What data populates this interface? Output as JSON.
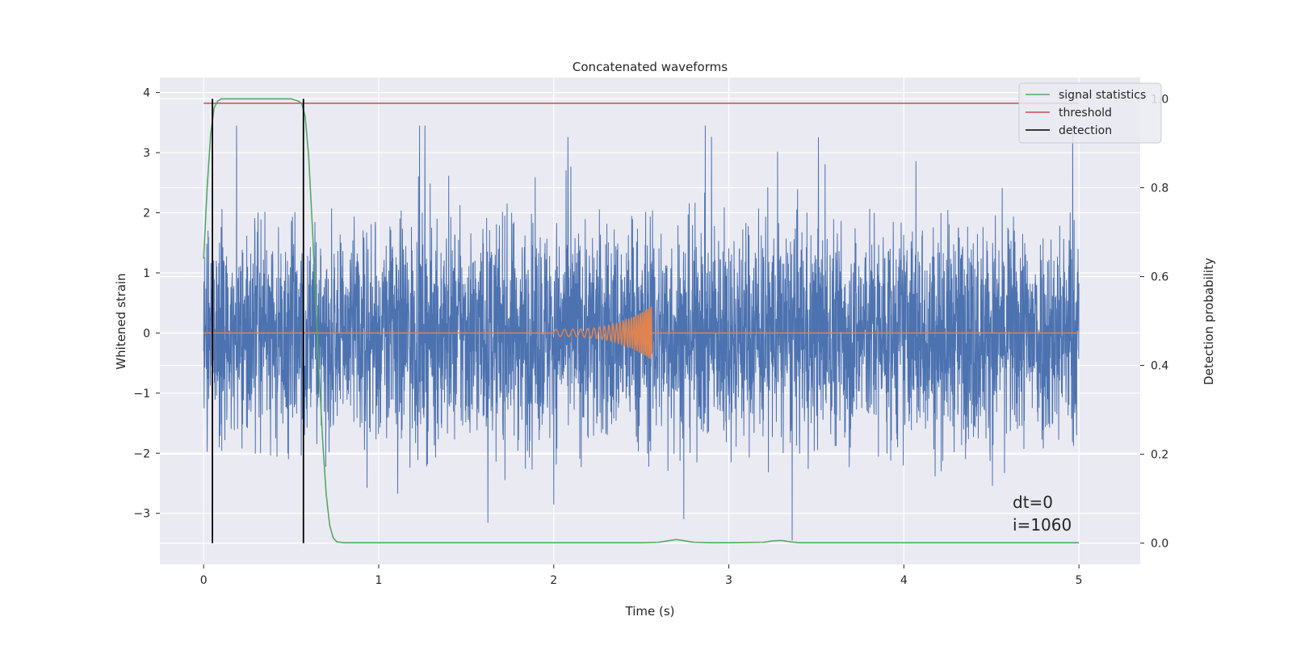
{
  "chart_data": {
    "type": "line",
    "title": "Concatenated waveforms",
    "xlabel": "Time (s)",
    "ylabel": "Whitened strain",
    "y2label": "Detection probability",
    "xlim": [
      -0.25,
      5.35
    ],
    "ylim": [
      -3.85,
      4.25
    ],
    "y2lim": [
      -0.048,
      1.048
    ],
    "xticks": [
      0,
      1,
      2,
      3,
      4,
      5
    ],
    "yticks": [
      -3,
      -2,
      -1,
      0,
      1,
      2,
      3,
      4
    ],
    "y2ticks": [
      0.0,
      0.2,
      0.4,
      0.6,
      0.8,
      1.0
    ],
    "xtick_labels": [
      "0",
      "1",
      "2",
      "3",
      "4",
      "5"
    ],
    "ytick_labels": [
      "−3",
      "−2",
      "−1",
      "0",
      "1",
      "2",
      "3",
      "4"
    ],
    "y2tick_labels": [
      "0.0",
      "0.2",
      "0.4",
      "0.6",
      "0.8",
      "1.0"
    ],
    "grid": true,
    "legend_position": "top-right",
    "series": [
      {
        "name": "whitened strain",
        "axis": "left",
        "color": "#4c72b0",
        "description": "noise, approx. amplitude within [-3.5, 3.5], t from 0 to 5 s"
      },
      {
        "name": "injected signal",
        "axis": "left",
        "color": "#dd8452",
        "chirp_start": 2.0,
        "chirp_end": 2.56,
        "peak_amplitude": 0.45
      },
      {
        "name": "signal statistics",
        "axis": "right",
        "color": "#55a868",
        "x": [
          0.0,
          0.02,
          0.04,
          0.06,
          0.08,
          0.1,
          0.2,
          0.3,
          0.4,
          0.5,
          0.54,
          0.56,
          0.58,
          0.6,
          0.62,
          0.64,
          0.66,
          0.68,
          0.7,
          0.72,
          0.74,
          0.76,
          0.8,
          1.0,
          1.5,
          2.0,
          2.5,
          2.6,
          2.65,
          2.7,
          2.75,
          2.8,
          2.9,
          3.0,
          3.2,
          3.25,
          3.3,
          3.35,
          3.4,
          4.0,
          4.5,
          5.0
        ],
        "y": [
          0.64,
          0.8,
          0.92,
          0.98,
          0.995,
          1.0,
          1.0,
          1.0,
          1.0,
          1.0,
          0.995,
          0.99,
          0.96,
          0.87,
          0.72,
          0.55,
          0.38,
          0.23,
          0.11,
          0.04,
          0.012,
          0.003,
          0.001,
          0.001,
          0.001,
          0.001,
          0.001,
          0.002,
          0.005,
          0.008,
          0.005,
          0.002,
          0.001,
          0.001,
          0.002,
          0.005,
          0.006,
          0.003,
          0.001,
          0.001,
          0.001,
          0.001
        ]
      },
      {
        "name": "threshold",
        "axis": "right",
        "color": "#c44e52",
        "x": [
          0.0,
          5.0
        ],
        "y": [
          0.99,
          0.99
        ]
      },
      {
        "name": "detection",
        "axis": "right",
        "color": "#000000",
        "x": [
          0.05,
          0.57
        ],
        "y": [
          1.0,
          1.0
        ]
      }
    ],
    "legend": [
      "signal statistics",
      "threshold",
      "detection"
    ],
    "annotations": [
      "dt=0",
      "i=1060"
    ]
  },
  "colors": {
    "axes_bg": "#eaeaf2",
    "grid": "#ffffff",
    "strain": "#4c72b0",
    "chirp": "#dd8452",
    "stat": "#55a868",
    "threshold": "#c44e52",
    "detection": "#000000"
  }
}
